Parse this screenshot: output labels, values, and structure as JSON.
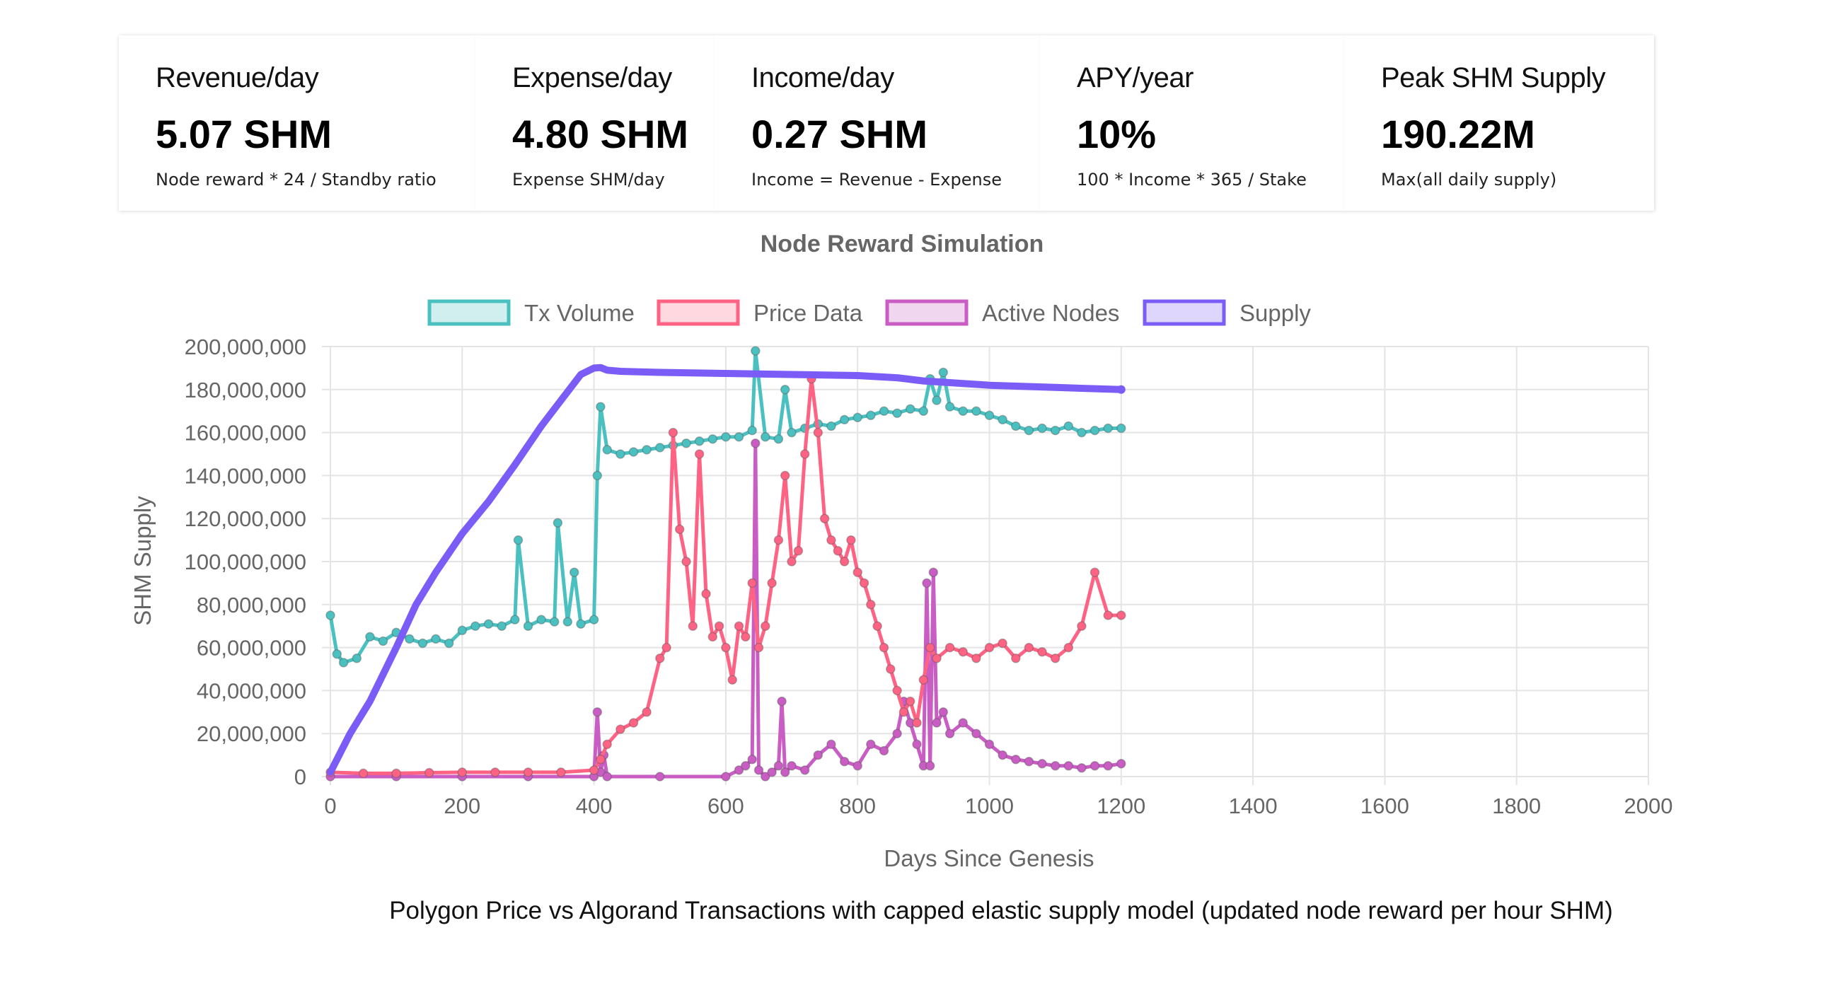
{
  "stats": [
    {
      "title": "Revenue/day",
      "value": "5.07 SHM",
      "sub": "Node reward * 24 / Standby ratio"
    },
    {
      "title": "Expense/day",
      "value": "4.80 SHM",
      "sub": "Expense  SHM/day"
    },
    {
      "title": "Income/day",
      "value": "0.27 SHM",
      "sub": "Income = Revenue - Expense"
    },
    {
      "title": "APY/year",
      "value": "10%",
      "sub": "100 * Income * 365 / Stake"
    },
    {
      "title": "Peak SHM Supply",
      "value": "190.22M",
      "sub": "Max(all daily supply)"
    }
  ],
  "chart_data": {
    "type": "line",
    "title": "Node Reward Simulation",
    "xlabel": "Days Since Genesis",
    "ylabel": "SHM Supply",
    "xlim": [
      0,
      2000
    ],
    "ylim": [
      0,
      200000000
    ],
    "xticks": [
      "0",
      "200",
      "400",
      "600",
      "800",
      "1000",
      "1200",
      "1400",
      "1600",
      "1800",
      "2000"
    ],
    "yticks": [
      "0",
      "20,000,000",
      "40,000,000",
      "60,000,000",
      "80,000,000",
      "100,000,000",
      "120,000,000",
      "140,000,000",
      "160,000,000",
      "180,000,000",
      "200,000,000"
    ],
    "grid": true,
    "legend_position": "top",
    "series": [
      {
        "name": "Tx Volume",
        "color": "#4bc0c0",
        "x": [
          0,
          10,
          20,
          40,
          60,
          80,
          100,
          120,
          140,
          160,
          180,
          200,
          220,
          240,
          260,
          280,
          285,
          300,
          320,
          340,
          345,
          360,
          370,
          380,
          400,
          405,
          410,
          420,
          440,
          460,
          480,
          500,
          520,
          540,
          560,
          580,
          600,
          620,
          640,
          645,
          660,
          680,
          690,
          700,
          720,
          740,
          760,
          780,
          800,
          820,
          840,
          860,
          880,
          900,
          910,
          920,
          930,
          940,
          960,
          980,
          1000,
          1020,
          1040,
          1060,
          1080,
          1100,
          1120,
          1140,
          1160,
          1180,
          1200
        ],
        "y": [
          75000000,
          57000000,
          53000000,
          55000000,
          65000000,
          63000000,
          67000000,
          64000000,
          62000000,
          64000000,
          62000000,
          68000000,
          70000000,
          71000000,
          70000000,
          73000000,
          110000000,
          70000000,
          73000000,
          72000000,
          118000000,
          72000000,
          95000000,
          71000000,
          73000000,
          140000000,
          172000000,
          152000000,
          150000000,
          151000000,
          152000000,
          153000000,
          154000000,
          155000000,
          156000000,
          157000000,
          158000000,
          158000000,
          161000000,
          198000000,
          158000000,
          157000000,
          180000000,
          160000000,
          162000000,
          164000000,
          163000000,
          166000000,
          167000000,
          168000000,
          170000000,
          169000000,
          171000000,
          170000000,
          185000000,
          175000000,
          188000000,
          172000000,
          170000000,
          170000000,
          168000000,
          166000000,
          163000000,
          161000000,
          162000000,
          161000000,
          163000000,
          160000000,
          161000000,
          162000000,
          162000000
        ]
      },
      {
        "name": "Price Data",
        "color": "#ff6384",
        "x": [
          0,
          50,
          100,
          150,
          200,
          250,
          300,
          350,
          400,
          410,
          420,
          440,
          460,
          480,
          500,
          510,
          520,
          530,
          540,
          550,
          560,
          570,
          580,
          590,
          600,
          610,
          620,
          630,
          640,
          650,
          660,
          670,
          680,
          690,
          700,
          710,
          720,
          730,
          740,
          750,
          760,
          770,
          780,
          790,
          800,
          810,
          820,
          830,
          840,
          850,
          860,
          870,
          880,
          890,
          900,
          910,
          920,
          940,
          960,
          980,
          1000,
          1020,
          1040,
          1060,
          1080,
          1100,
          1120,
          1140,
          1160,
          1180,
          1200
        ],
        "y": [
          2000000,
          1500000,
          1500000,
          1800000,
          2000000,
          2000000,
          2000000,
          2000000,
          3000000,
          8000000,
          15000000,
          22000000,
          25000000,
          30000000,
          55000000,
          60000000,
          160000000,
          115000000,
          100000000,
          70000000,
          150000000,
          85000000,
          65000000,
          70000000,
          60000000,
          45000000,
          70000000,
          65000000,
          90000000,
          60000000,
          70000000,
          90000000,
          110000000,
          140000000,
          100000000,
          105000000,
          150000000,
          185000000,
          160000000,
          120000000,
          110000000,
          105000000,
          100000000,
          110000000,
          95000000,
          90000000,
          80000000,
          70000000,
          60000000,
          50000000,
          40000000,
          30000000,
          35000000,
          25000000,
          45000000,
          60000000,
          55000000,
          60000000,
          58000000,
          55000000,
          60000000,
          62000000,
          55000000,
          60000000,
          58000000,
          55000000,
          60000000,
          70000000,
          95000000,
          75000000,
          75000000
        ]
      },
      {
        "name": "Active Nodes",
        "color": "#c95dc4",
        "x": [
          0,
          100,
          200,
          300,
          400,
          405,
          410,
          415,
          420,
          500,
          600,
          620,
          630,
          640,
          645,
          650,
          660,
          670,
          680,
          685,
          690,
          700,
          720,
          740,
          760,
          780,
          800,
          820,
          840,
          860,
          870,
          880,
          890,
          900,
          905,
          910,
          915,
          920,
          930,
          940,
          960,
          980,
          1000,
          1020,
          1040,
          1060,
          1080,
          1100,
          1120,
          1140,
          1160,
          1180,
          1200
        ],
        "y": [
          0,
          0,
          0,
          0,
          0,
          30000000,
          2000000,
          10000000,
          0,
          0,
          0,
          3000000,
          5000000,
          8000000,
          155000000,
          3000000,
          0,
          2000000,
          5000000,
          35000000,
          2000000,
          5000000,
          3000000,
          10000000,
          15000000,
          7000000,
          5000000,
          15000000,
          12000000,
          20000000,
          35000000,
          25000000,
          15000000,
          5000000,
          90000000,
          5000000,
          95000000,
          25000000,
          30000000,
          20000000,
          25000000,
          20000000,
          15000000,
          10000000,
          8000000,
          7000000,
          6000000,
          5000000,
          5000000,
          4000000,
          5000000,
          5000000,
          6000000
        ]
      },
      {
        "name": "Supply",
        "color": "#7c5cf6",
        "x": [
          0,
          10,
          30,
          60,
          100,
          130,
          160,
          200,
          240,
          280,
          320,
          350,
          380,
          400,
          410,
          420,
          440,
          500,
          600,
          700,
          800,
          860,
          900,
          1000,
          1100,
          1200
        ],
        "y": [
          2000000,
          8000000,
          20000000,
          35000000,
          60000000,
          80000000,
          95000000,
          113000000,
          128000000,
          145000000,
          163000000,
          175000000,
          187000000,
          190000000,
          190220000,
          189000000,
          188500000,
          188000000,
          187500000,
          187000000,
          186500000,
          185500000,
          184000000,
          182000000,
          181000000,
          180000000
        ]
      }
    ]
  },
  "caption": {
    "main": "Polygon Price vs Algorand Transactions with capped elastic supply model",
    "extra": "(updated node reward per hour SHM)"
  }
}
